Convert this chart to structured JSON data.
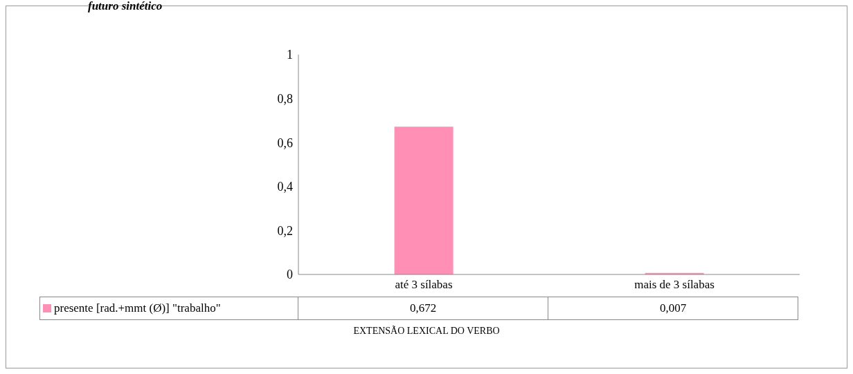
{
  "chart_data": {
    "type": "bar",
    "title": "futuro sintético",
    "xlabel": "EXTENSÃO LEXICAL DO VERBO",
    "categories": [
      "até 3 sílabas",
      "mais de 3 sílabas"
    ],
    "series": [
      {
        "name": "presente [rad.+mmt (Ø)] \"trabalho\"",
        "color": "#ff8fb4",
        "values": [
          0.672,
          0.007
        ],
        "value_labels": [
          "0,672",
          "0,007"
        ]
      }
    ],
    "ylim": [
      0,
      1
    ],
    "yticks": [
      0,
      {
        "value": 0.2,
        "label": "0,2"
      },
      {
        "value": 0.4,
        "label": "0,4"
      },
      {
        "value": 0.6,
        "label": "0,6"
      },
      {
        "value": 0.8,
        "label": "0,8"
      },
      1
    ],
    "grid": false,
    "legend": "bottom left"
  }
}
